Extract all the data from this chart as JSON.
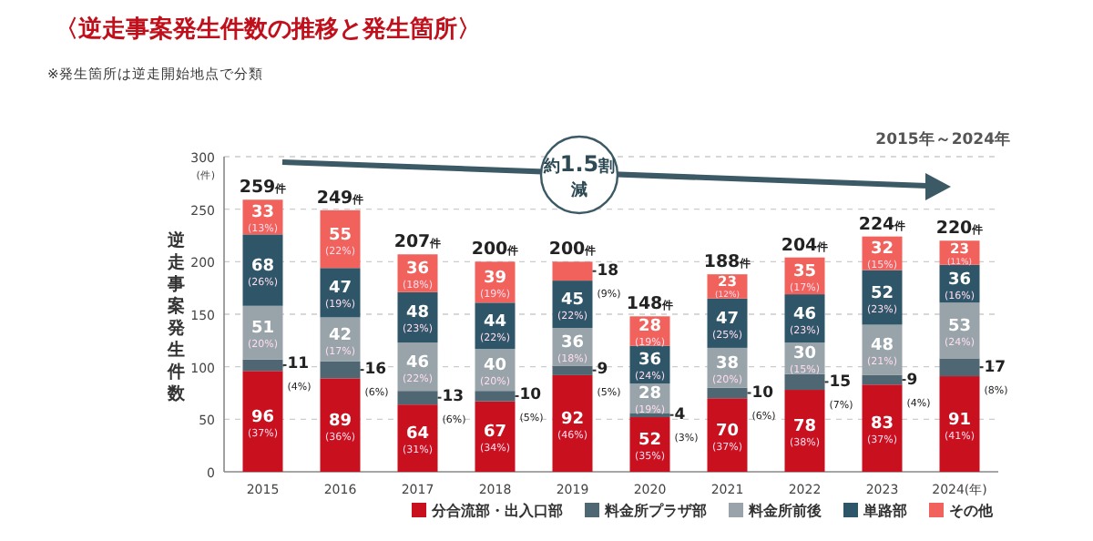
{
  "chart_data": {
    "type": "bar",
    "title": "〈逆走事案発生件数の推移と発生箇所〉",
    "subtitle": "※発生箇所は逆走開始地点で分類",
    "ylabel": "逆走事案発生件数",
    "annotations": [
      "(件)",
      "2015年～2024年",
      "約1.5割減"
    ],
    "categories": [
      "2015",
      "2016",
      "2017",
      "2018",
      "2019",
      "2020",
      "2021",
      "2022",
      "2023",
      "2024(年)"
    ],
    "stacked": true,
    "ylim": [
      0,
      300
    ],
    "yticks": [
      0,
      50,
      100,
      150,
      200,
      250,
      300
    ],
    "grid": "y",
    "legend": "bottom",
    "series": [
      {
        "name": "分合流部・出入口部",
        "color": "#c8101f",
        "values": [
          96,
          89,
          64,
          67,
          92,
          52,
          70,
          78,
          83,
          91
        ],
        "value_labels": [
          "96 (37%)",
          "89 (36%)",
          "64 (31%)",
          "67 (34%)",
          "92 (46%)",
          "52 (35%)",
          "70 (37%)",
          "78 (38%)",
          "83 (37%)",
          "91 (41%)"
        ]
      },
      {
        "name": "料金所プラザ部",
        "color": "#4f6772",
        "values": [
          11,
          16,
          13,
          10,
          9,
          4,
          10,
          15,
          9,
          17
        ],
        "value_labels": [
          "11 (4%)",
          "16 (6%)",
          "13 (6%)",
          "10 (5%)",
          "9 (5%)",
          "4 (3%)",
          "10 (6%)",
          "15 (7%)",
          "9 (4%)",
          "17 (8%)"
        ]
      },
      {
        "name": "料金所前後",
        "color": "#98a4aa",
        "values": [
          51,
          42,
          46,
          40,
          36,
          28,
          38,
          30,
          48,
          53
        ],
        "value_labels": [
          "51 (20%)",
          "42 (17%)",
          "46 (22%)",
          "40 (20%)",
          "36 (18%)",
          "28 (19%)",
          "38 (20%)",
          "30 (15%)",
          "48 (21%)",
          "53 (24%)"
        ]
      },
      {
        "name": "単路部",
        "color": "#2e5668",
        "values": [
          68,
          47,
          48,
          44,
          45,
          36,
          47,
          46,
          52,
          36
        ],
        "value_labels": [
          "68 (26%)",
          "47 (19%)",
          "48 (23%)",
          "44 (22%)",
          "45 (22%)",
          "36 (24%)",
          "47 (25%)",
          "46 (23%)",
          "52 (23%)",
          "36 (16%)"
        ]
      },
      {
        "name": "その他",
        "color": "#f0625b",
        "values": [
          33,
          55,
          36,
          39,
          18,
          28,
          23,
          35,
          32,
          23
        ],
        "value_labels": [
          "33 (13%)",
          "55 (22%)",
          "36 (18%)",
          "39 (19%)",
          "18 (9%)",
          "28 (19%)",
          "23 (12%)",
          "35 (17%)",
          "32 (15%)",
          "23 (11%)"
        ]
      }
    ],
    "totals": [
      "259件",
      "249件",
      "207件",
      "200件",
      "200件",
      "148件",
      "188件",
      "204件",
      "224件",
      "220件"
    ]
  }
}
